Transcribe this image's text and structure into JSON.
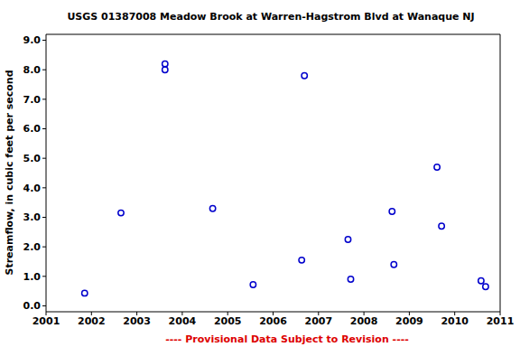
{
  "chart_data": {
    "type": "scatter",
    "title": "USGS 01387008 Meadow Brook at Warren-Hagstrom Blvd at Wanaque NJ",
    "y_label": "Streamflow, in cubic feet per second",
    "annotation": "---- Provisional Data Subject to Revision ----",
    "x": [
      2001.85,
      2002.65,
      2003.62,
      2003.62,
      2004.67,
      2005.56,
      2006.63,
      2006.69,
      2007.65,
      2007.71,
      2008.62,
      2008.66,
      2009.61,
      2009.71,
      2010.58,
      2010.68
    ],
    "values": [
      0.43,
      3.15,
      8.2,
      8.0,
      3.3,
      0.72,
      1.55,
      7.8,
      2.25,
      0.9,
      3.2,
      1.4,
      4.7,
      2.7,
      0.85,
      0.65
    ],
    "color": "#0000cc",
    "marker": "open_circle",
    "xlim": [
      2001,
      2011
    ],
    "xticks": [
      2001,
      2002,
      2003,
      2004,
      2005,
      2006,
      2007,
      2008,
      2009,
      2010,
      2011
    ],
    "ylim": [
      -0.2,
      9.2
    ],
    "yticks": [
      {
        "value": 0,
        "label": "0.0"
      },
      {
        "value": 1,
        "label": "1.0"
      },
      {
        "value": 2,
        "label": "2.0"
      },
      {
        "value": 3,
        "label": "3.0"
      },
      {
        "value": 4,
        "label": "4.0"
      },
      {
        "value": 5,
        "label": "5.0"
      },
      {
        "value": 6,
        "label": "6.0"
      },
      {
        "value": 7,
        "label": "7.0"
      },
      {
        "value": 8,
        "label": "8.0"
      },
      {
        "value": 9,
        "label": "9.0"
      }
    ],
    "grid": false
  }
}
